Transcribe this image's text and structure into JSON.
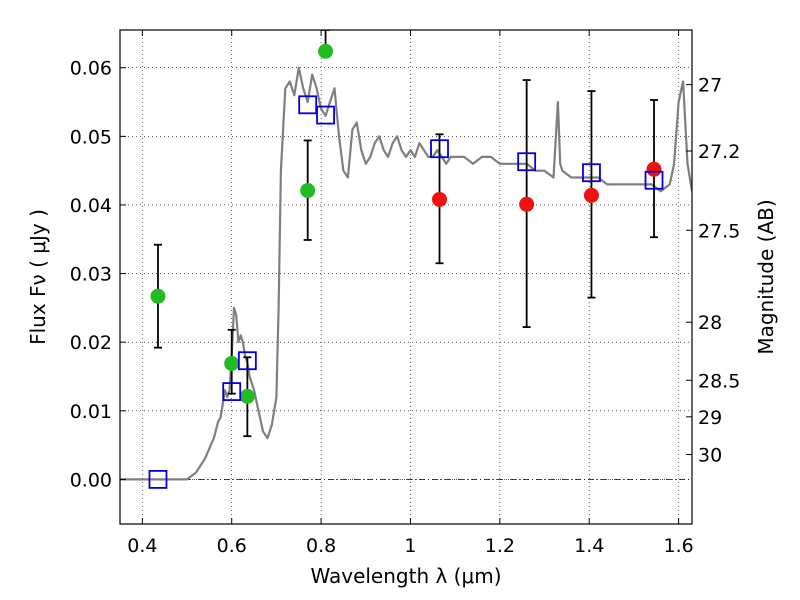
{
  "chart_data": {
    "type": "scatter",
    "title": "",
    "xlabel": "Wavelength  λ (μm)",
    "ylabel": "Flux  Fν  ( μJy )",
    "ylabel_right": "Magnitude (AB)",
    "xlim": [
      0.35,
      1.63
    ],
    "ylim": [
      -0.0065,
      0.0655
    ],
    "grid": true,
    "x_ticks": [
      0.4,
      0.6,
      0.8,
      1.0,
      1.2,
      1.4,
      1.6
    ],
    "x_tick_labels": [
      "0.4",
      "0.6",
      "0.8",
      "1",
      "1.2",
      "1.4",
      "1.6"
    ],
    "y_ticks": [
      0.0,
      0.01,
      0.02,
      0.03,
      0.04,
      0.05,
      0.06
    ],
    "y_tick_labels": [
      "0.00",
      "0.01",
      "0.02",
      "0.03",
      "0.04",
      "0.05",
      "0.06"
    ],
    "right_ticks": [
      {
        "label": "27",
        "flux": 0.05754
      },
      {
        "label": "27.2",
        "flux": 0.04786
      },
      {
        "label": "27.5",
        "flux": 0.03631
      },
      {
        "label": "28",
        "flux": 0.02291
      },
      {
        "label": "28.5",
        "flux": 0.01445
      },
      {
        "label": "29",
        "flux": 0.00912
      },
      {
        "label": "30",
        "flux": 0.00363
      }
    ],
    "colors": {
      "model": "#7f7f7f",
      "green": "#22bb22",
      "red": "#ee1111",
      "square": "#0000dd",
      "errorbar": "#000000",
      "zero_line": "#000000"
    },
    "series": [
      {
        "kind": "line",
        "color": "#7f7f7f",
        "x": [
          0.35,
          0.5,
          0.52,
          0.54,
          0.56,
          0.57,
          0.575,
          0.58,
          0.585,
          0.59,
          0.595,
          0.6,
          0.605,
          0.61,
          0.615,
          0.62,
          0.625,
          0.63,
          0.635,
          0.64,
          0.65,
          0.66,
          0.67,
          0.68,
          0.69,
          0.7,
          0.705,
          0.71,
          0.72,
          0.73,
          0.74,
          0.75,
          0.76,
          0.77,
          0.78,
          0.79,
          0.8,
          0.81,
          0.82,
          0.83,
          0.84,
          0.85,
          0.86,
          0.87,
          0.88,
          0.89,
          0.9,
          0.91,
          0.92,
          0.93,
          0.94,
          0.95,
          0.96,
          0.97,
          0.98,
          0.99,
          1.0,
          1.01,
          1.02,
          1.03,
          1.04,
          1.05,
          1.06,
          1.07,
          1.08,
          1.09,
          1.1,
          1.12,
          1.14,
          1.16,
          1.18,
          1.2,
          1.22,
          1.24,
          1.26,
          1.28,
          1.3,
          1.32,
          1.33,
          1.335,
          1.34,
          1.36,
          1.38,
          1.4,
          1.42,
          1.44,
          1.46,
          1.48,
          1.5,
          1.52,
          1.54,
          1.56,
          1.58,
          1.59,
          1.6,
          1.61,
          1.62,
          1.63
        ],
        "y": [
          0.0,
          0.0,
          0.001,
          0.003,
          0.006,
          0.0085,
          0.009,
          0.011,
          0.013,
          0.012,
          0.013,
          0.018,
          0.025,
          0.024,
          0.02,
          0.021,
          0.02,
          0.018,
          0.017,
          0.015,
          0.013,
          0.01,
          0.007,
          0.006,
          0.008,
          0.012,
          0.025,
          0.045,
          0.057,
          0.058,
          0.056,
          0.06,
          0.057,
          0.055,
          0.059,
          0.057,
          0.054,
          0.053,
          0.055,
          0.057,
          0.05,
          0.045,
          0.044,
          0.051,
          0.052,
          0.048,
          0.046,
          0.047,
          0.049,
          0.05,
          0.048,
          0.047,
          0.049,
          0.05,
          0.048,
          0.047,
          0.048,
          0.047,
          0.049,
          0.048,
          0.047,
          0.047,
          0.048,
          0.047,
          0.046,
          0.047,
          0.047,
          0.047,
          0.046,
          0.047,
          0.047,
          0.046,
          0.046,
          0.046,
          0.046,
          0.045,
          0.045,
          0.044,
          0.055,
          0.046,
          0.045,
          0.044,
          0.044,
          0.044,
          0.044,
          0.043,
          0.043,
          0.043,
          0.043,
          0.043,
          0.043,
          0.042,
          0.043,
          0.046,
          0.055,
          0.058,
          0.046,
          0.042
        ]
      },
      {
        "kind": "points",
        "marker": "circle",
        "color": "#22bb22",
        "x": [
          0.435,
          0.6,
          0.635,
          0.77,
          0.81
        ],
        "y": [
          0.0267,
          0.0169,
          0.0121,
          0.0421,
          0.0624
        ],
        "yerr_low": [
          0.0075,
          0.0044,
          0.0058,
          0.0072,
          0.0
        ],
        "yerr_high": [
          0.0075,
          0.0049,
          0.0057,
          0.0073,
          0.0031
        ]
      },
      {
        "kind": "points",
        "marker": "circle",
        "color": "#ee1111",
        "x": [
          1.065,
          1.26,
          1.405,
          1.545
        ],
        "y": [
          0.0408,
          0.0401,
          0.0414,
          0.0452
        ],
        "yerr_low": [
          0.0093,
          0.0179,
          0.0149,
          0.0099
        ],
        "yerr_high": [
          0.0095,
          0.0181,
          0.0152,
          0.0101
        ]
      },
      {
        "kind": "points",
        "marker": "square",
        "color": "#0000dd",
        "x": [
          0.435,
          0.6,
          0.635,
          0.77,
          0.81,
          1.065,
          1.26,
          1.405,
          1.545
        ],
        "y": [
          0.0,
          0.0128,
          0.0173,
          0.0546,
          0.0531,
          0.0482,
          0.0463,
          0.0447,
          0.0436
        ]
      }
    ]
  }
}
